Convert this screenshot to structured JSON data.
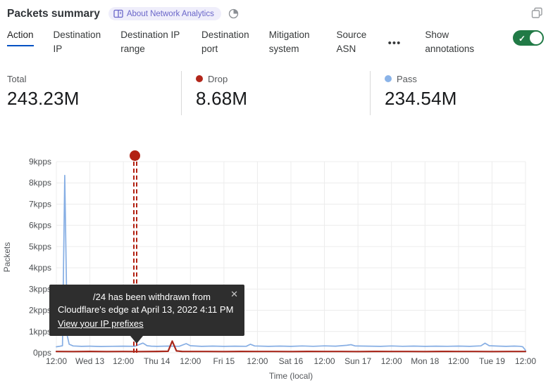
{
  "header": {
    "title": "Packets summary",
    "badge_label": "About Network Analytics",
    "icons": {
      "badge_book": "book-icon",
      "time": "clock-icon",
      "popout": "expand-icon"
    }
  },
  "tabs": {
    "items": [
      {
        "label": "Action",
        "active": true
      },
      {
        "label": "Destination IP",
        "active": false
      },
      {
        "label": "Destination IP range",
        "active": false
      },
      {
        "label": "Destination port",
        "active": false
      },
      {
        "label": "Mitigation system",
        "active": false
      },
      {
        "label": "Source ASN",
        "active": false
      }
    ],
    "more_glyph": "•••",
    "show_annotations_label": "Show annotations",
    "toggle_on": true,
    "toggle_check_glyph": "✓"
  },
  "stats": [
    {
      "label": "Total",
      "value": "243.23M",
      "dot_color": ""
    },
    {
      "label": "Drop",
      "value": "8.68M",
      "dot_color": "#b2261a"
    },
    {
      "label": "Pass",
      "value": "234.54M",
      "dot_color": "#8ab3e8"
    }
  ],
  "tooltip": {
    "line1": "/24 has been withdrawn from",
    "line2": "Cloudflare's edge at April 13, 2022 4:11 PM",
    "link": "View your IP prefixes",
    "close_glyph": "✕"
  },
  "colors": {
    "accent_blue": "#0051c3",
    "toggle_green": "#217a46",
    "annotation_red": "#b22112",
    "badge_bg": "#efeefb",
    "badge_text": "#6a66c9",
    "grid": "#ececec"
  },
  "chart_data": {
    "type": "line",
    "xlabel": "Time (local)",
    "ylabel": "Packets",
    "x_unit": "hours from Apr 12 12:00 local",
    "x_range": [
      0,
      168
    ],
    "ylim": [
      0,
      9000
    ],
    "grid": true,
    "grid_color": "#ececec",
    "x_tick_hours": [
      0,
      12,
      24,
      36,
      48,
      60,
      72,
      84,
      96,
      108,
      120,
      132,
      144,
      156,
      168
    ],
    "x_tick_labels": [
      "12:00",
      "Wed 13",
      "12:00",
      "Thu 14",
      "12:00",
      "Fri 15",
      "12:00",
      "Sat 16",
      "12:00",
      "Sun 17",
      "12:00",
      "Mon 18",
      "12:00",
      "Tue 19",
      "12:00"
    ],
    "y_tick_values": [
      0,
      1000,
      2000,
      3000,
      4000,
      5000,
      6000,
      7000,
      8000,
      9000
    ],
    "y_tick_labels": [
      "0pps",
      "1kpps",
      "2kpps",
      "3kpps",
      "4kpps",
      "5kpps",
      "6kpps",
      "7kpps",
      "8kpps",
      "9kpps"
    ],
    "series": [
      {
        "name": "Pass",
        "color": "#86aee4",
        "width": 1.7,
        "points": [
          [
            0,
            280
          ],
          [
            1,
            300
          ],
          [
            2.2,
            330
          ],
          [
            3,
            8350
          ],
          [
            3.9,
            800
          ],
          [
            4.6,
            400
          ],
          [
            6,
            320
          ],
          [
            9,
            300
          ],
          [
            12,
            310
          ],
          [
            16,
            295
          ],
          [
            20,
            305
          ],
          [
            24,
            310
          ],
          [
            28,
            300
          ],
          [
            31,
            455
          ],
          [
            32.5,
            330
          ],
          [
            34,
            310
          ],
          [
            36,
            300
          ],
          [
            40,
            315
          ],
          [
            44,
            305
          ],
          [
            46.5,
            430
          ],
          [
            48,
            330
          ],
          [
            52,
            300
          ],
          [
            56,
            315
          ],
          [
            60,
            300
          ],
          [
            64,
            310
          ],
          [
            68,
            305
          ],
          [
            69.5,
            400
          ],
          [
            71,
            320
          ],
          [
            76,
            300
          ],
          [
            80,
            315
          ],
          [
            84,
            300
          ],
          [
            88,
            320
          ],
          [
            92,
            305
          ],
          [
            96,
            325
          ],
          [
            100,
            310
          ],
          [
            104,
            350
          ],
          [
            105.5,
            380
          ],
          [
            107,
            320
          ],
          [
            112,
            310
          ],
          [
            116,
            300
          ],
          [
            120,
            320
          ],
          [
            124,
            305
          ],
          [
            128,
            315
          ],
          [
            132,
            300
          ],
          [
            136,
            310
          ],
          [
            140,
            305
          ],
          [
            144,
            315
          ],
          [
            148,
            300
          ],
          [
            152,
            325
          ],
          [
            153.5,
            450
          ],
          [
            155,
            330
          ],
          [
            158,
            315
          ],
          [
            161,
            300
          ],
          [
            164,
            315
          ],
          [
            166,
            305
          ],
          [
            167,
            280
          ],
          [
            168,
            120
          ]
        ]
      },
      {
        "name": "Drop",
        "color": "#a8281c",
        "width": 2.2,
        "points": [
          [
            0,
            60
          ],
          [
            6,
            55
          ],
          [
            12,
            62
          ],
          [
            18,
            55
          ],
          [
            24,
            60
          ],
          [
            30,
            56
          ],
          [
            36,
            62
          ],
          [
            40,
            70
          ],
          [
            41.5,
            550
          ],
          [
            43,
            85
          ],
          [
            45,
            62
          ],
          [
            48,
            58
          ],
          [
            54,
            60
          ],
          [
            60,
            56
          ],
          [
            66,
            62
          ],
          [
            72,
            58
          ],
          [
            78,
            60
          ],
          [
            84,
            56
          ],
          [
            90,
            62
          ],
          [
            96,
            58
          ],
          [
            102,
            60
          ],
          [
            108,
            56
          ],
          [
            114,
            62
          ],
          [
            120,
            58
          ],
          [
            126,
            60
          ],
          [
            132,
            56
          ],
          [
            138,
            62
          ],
          [
            144,
            58
          ],
          [
            150,
            60
          ],
          [
            156,
            56
          ],
          [
            162,
            60
          ],
          [
            168,
            58
          ]
        ]
      }
    ],
    "annotation": {
      "x_hours": 28.2,
      "color": "#b22112",
      "tooltip_date": "April 13, 2022 4:11 PM"
    }
  }
}
